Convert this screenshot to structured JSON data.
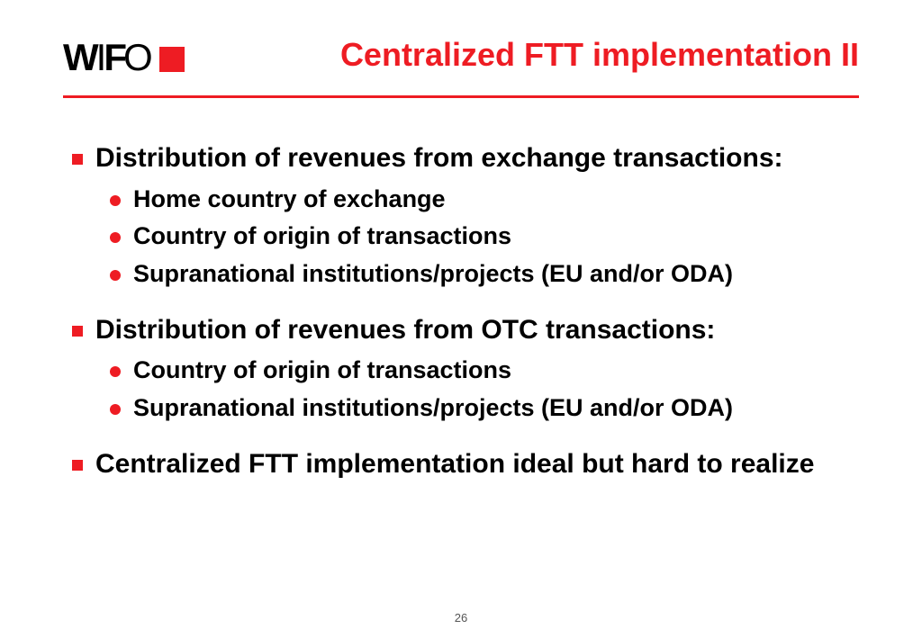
{
  "logo": {
    "text_w": "W",
    "text_i": "I",
    "text_f": "F",
    "text_o": "O"
  },
  "title": "Centralized FTT implementation II",
  "colors": {
    "accent": "#ee1c23",
    "text": "#000000",
    "background": "#ffffff"
  },
  "bullets": [
    {
      "level": 1,
      "text": "Distribution of revenues from exchange transactions:"
    },
    {
      "level": 2,
      "text": "Home country of exchange"
    },
    {
      "level": 2,
      "text": "Country of origin of transactions"
    },
    {
      "level": 2,
      "text": "Supranational institutions/projects (EU and/or ODA)"
    },
    {
      "level": 1,
      "text": "Distribution of revenues from OTC transactions:"
    },
    {
      "level": 2,
      "text": "Country of origin of transactions"
    },
    {
      "level": 2,
      "text": "Supranational institutions/projects (EU and/or ODA)"
    },
    {
      "level": 1,
      "text": "Centralized FTT implementation ideal but hard to realize"
    }
  ],
  "page_number": "26"
}
